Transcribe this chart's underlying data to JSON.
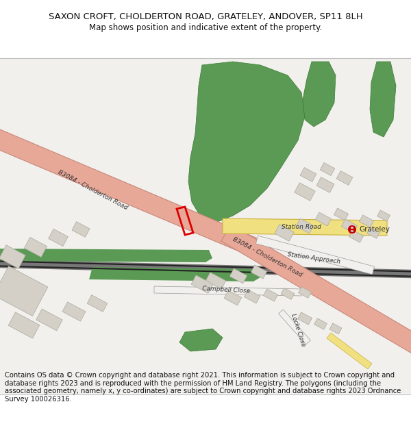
{
  "title": "SAXON CROFT, CHOLDERTON ROAD, GRATELEY, ANDOVER, SP11 8LH",
  "subtitle": "Map shows position and indicative extent of the property.",
  "footer": "Contains OS data © Crown copyright and database right 2021. This information is subject to Crown copyright and database rights 2023 and is reproduced with the permission of HM Land Registry. The polygons (including the associated geometry, namely x, y co-ordinates) are subject to Crown copyright and database rights 2023 Ordnance Survey 100026316.",
  "map_bg": "#f2f0ed",
  "road_main_color": "#e8a898",
  "road_main_border": "#c8887a",
  "road_secondary_color": "#f0e080",
  "road_secondary_border": "#c8b040",
  "green_color": "#5a9a54",
  "building_color": "#d4d0c8",
  "building_border": "#aaa89a",
  "plot_color": "#dd0000",
  "text_color": "#222222",
  "label_color": "#333333",
  "title_fontsize": 9.5,
  "subtitle_fontsize": 8.5,
  "footer_fontsize": 7.2
}
